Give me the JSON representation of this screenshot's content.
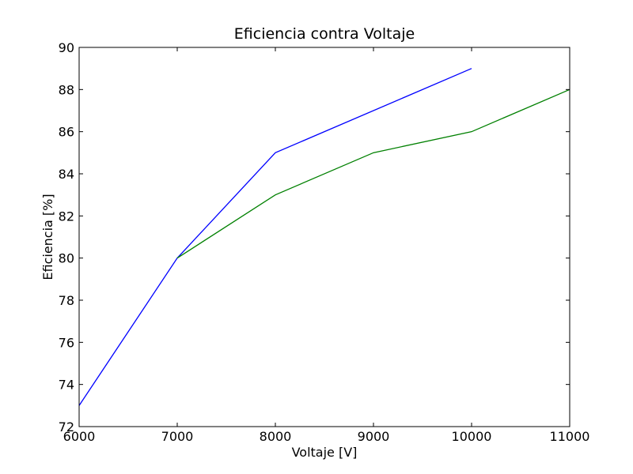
{
  "chart_data": {
    "type": "line",
    "title": "Eficiencia contra Voltaje",
    "xlabel": "Voltaje [V]",
    "ylabel": "Eficiencia [%]",
    "xlim": [
      6000,
      11000
    ],
    "ylim": [
      72,
      90
    ],
    "xticks": [
      6000,
      7000,
      8000,
      9000,
      10000,
      11000
    ],
    "yticks": [
      72,
      74,
      76,
      78,
      80,
      82,
      84,
      86,
      88,
      90
    ],
    "grid": false,
    "series": [
      {
        "color": "#0000ff",
        "x": [
          6000,
          7000,
          8000,
          10000
        ],
        "y": [
          73,
          80,
          85,
          89
        ]
      },
      {
        "color": "#008000",
        "x": [
          7000,
          8000,
          9000,
          10000,
          11000
        ],
        "y": [
          80,
          83,
          85,
          86,
          88
        ]
      }
    ]
  }
}
